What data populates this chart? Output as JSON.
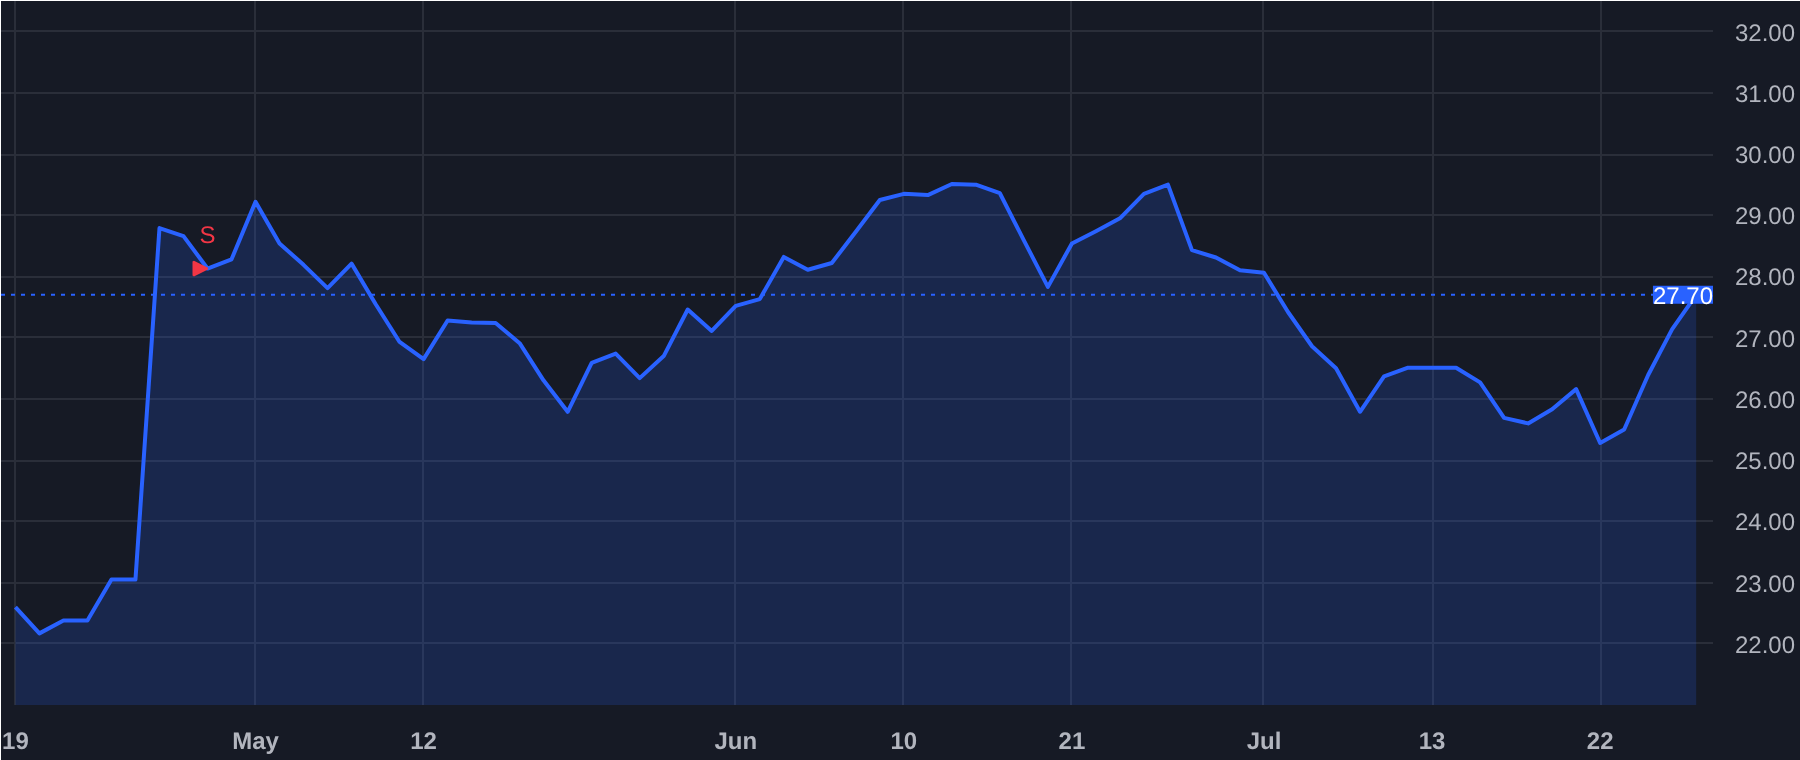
{
  "chart_data": {
    "type": "area",
    "categories": [
      "19",
      null,
      null,
      null,
      null,
      null,
      null,
      null,
      null,
      null,
      "May",
      null,
      null,
      null,
      null,
      null,
      null,
      "12",
      null,
      null,
      null,
      null,
      null,
      null,
      null,
      null,
      null,
      null,
      null,
      null,
      "Jun",
      null,
      null,
      null,
      null,
      null,
      null,
      "10",
      null,
      null,
      null,
      null,
      null,
      null,
      "21",
      null,
      null,
      null,
      null,
      null,
      null,
      null,
      "Jul",
      null,
      null,
      null,
      null,
      null,
      null,
      "13",
      null,
      null,
      null,
      null,
      null,
      null,
      "22",
      null,
      null,
      null,
      null
    ],
    "series": [
      {
        "color": "#2962ff",
        "values": [
          22.6,
          22.17,
          22.38,
          22.38,
          23.05,
          23.05,
          28.79,
          28.66,
          28.13,
          28.28,
          29.22,
          28.54,
          28.19,
          27.81,
          28.21,
          27.55,
          26.93,
          26.65,
          27.28,
          27.25,
          27.24,
          26.91,
          26.3,
          25.79,
          26.59,
          26.74,
          26.34,
          26.7,
          27.46,
          27.11,
          27.52,
          27.63,
          28.32,
          28.11,
          28.22,
          28.73,
          29.25,
          29.35,
          29.33,
          29.51,
          29.5,
          29.36,
          28.59,
          27.83,
          28.54,
          28.74,
          28.95,
          29.35,
          29.5,
          28.43,
          28.31,
          28.1,
          28.06,
          27.42,
          26.86,
          26.5,
          25.79,
          26.37,
          26.51,
          26.51,
          26.51,
          26.27,
          25.69,
          25.6,
          25.83,
          26.16,
          25.28,
          25.5,
          26.39,
          27.14,
          27.7
        ]
      }
    ],
    "ylim": [
      21.0,
      32.5
    ],
    "yticks": [
      {
        "value": 22,
        "label": "22.00"
      },
      {
        "value": 23,
        "label": "23.00"
      },
      {
        "value": 24,
        "label": "24.00"
      },
      {
        "value": 25,
        "label": "25.00"
      },
      {
        "value": 26,
        "label": "26.00"
      },
      {
        "value": 27,
        "label": "27.00"
      },
      {
        "value": 28,
        "label": "28.00"
      },
      {
        "value": 29,
        "label": "29.00"
      },
      {
        "value": 30,
        "label": "30.00"
      },
      {
        "value": 31,
        "label": "31.00"
      },
      {
        "value": 32,
        "label": "32.00"
      }
    ],
    "ref_lines": [
      {
        "axis": "y",
        "value": 27.7,
        "label": "27.70",
        "color": "#2962ff",
        "line_style": "dotted"
      }
    ],
    "annotations": [
      {
        "text": "S",
        "y": 28.13
      }
    ],
    "grid": true
  }
}
